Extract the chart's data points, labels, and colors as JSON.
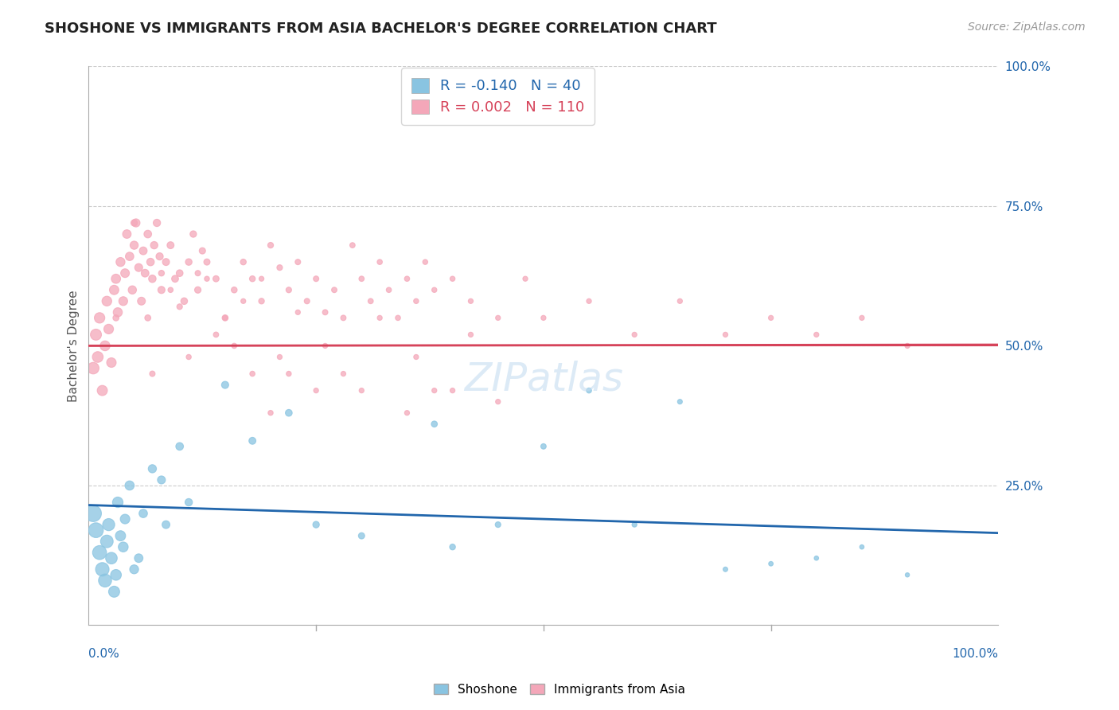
{
  "title": "SHOSHONE VS IMMIGRANTS FROM ASIA BACHELOR'S DEGREE CORRELATION CHART",
  "source": "Source: ZipAtlas.com",
  "ylabel": "Bachelor's Degree",
  "legend_label1": "Shoshone",
  "legend_label2": "Immigrants from Asia",
  "r1": "-0.140",
  "n1": "40",
  "r2": "0.002",
  "n2": "110",
  "watermark": "ZIPatlas",
  "blue_color": "#89c4e1",
  "pink_color": "#f4a7b9",
  "blue_line_color": "#2166ac",
  "pink_line_color": "#d6435a",
  "ref_line_color": "#d6435a",
  "blue_trend": [
    0,
    21.5,
    100,
    16.5
  ],
  "pink_trend": [
    0,
    50.0,
    100,
    50.2
  ],
  "shoshone_x": [
    0.5,
    0.8,
    1.2,
    1.5,
    1.8,
    2.0,
    2.2,
    2.5,
    2.8,
    3.0,
    3.2,
    3.5,
    3.8,
    4.0,
    4.5,
    5.0,
    5.5,
    6.0,
    7.0,
    8.0,
    8.5,
    10.0,
    11.0,
    15.0,
    18.0,
    22.0,
    25.0,
    30.0,
    38.0,
    40.0,
    45.0,
    50.0,
    55.0,
    60.0,
    65.0,
    70.0,
    75.0,
    80.0,
    85.0,
    90.0
  ],
  "shoshone_y": [
    20,
    17,
    13,
    10,
    8,
    15,
    18,
    12,
    6,
    9,
    22,
    16,
    14,
    19,
    25,
    10,
    12,
    20,
    28,
    26,
    18,
    32,
    22,
    43,
    33,
    38,
    18,
    16,
    36,
    14,
    18,
    32,
    42,
    18,
    40,
    10,
    11,
    12,
    14,
    9
  ],
  "shoshone_sizes": [
    220,
    180,
    160,
    150,
    140,
    130,
    120,
    110,
    100,
    95,
    90,
    85,
    80,
    75,
    70,
    65,
    60,
    58,
    55,
    52,
    50,
    48,
    45,
    42,
    40,
    38,
    35,
    32,
    30,
    28,
    26,
    24,
    22,
    20,
    19,
    18,
    17,
    16,
    16,
    15
  ],
  "asia_x": [
    0.5,
    0.8,
    1.0,
    1.2,
    1.5,
    1.8,
    2.0,
    2.2,
    2.5,
    2.8,
    3.0,
    3.2,
    3.5,
    3.8,
    4.0,
    4.2,
    4.5,
    4.8,
    5.0,
    5.2,
    5.5,
    5.8,
    6.0,
    6.2,
    6.5,
    6.8,
    7.0,
    7.2,
    7.5,
    7.8,
    8.0,
    8.5,
    9.0,
    9.5,
    10.0,
    10.5,
    11.0,
    11.5,
    12.0,
    12.5,
    13.0,
    14.0,
    15.0,
    16.0,
    17.0,
    18.0,
    19.0,
    20.0,
    21.0,
    22.0,
    23.0,
    24.0,
    25.0,
    26.0,
    27.0,
    28.0,
    29.0,
    30.0,
    31.0,
    32.0,
    33.0,
    34.0,
    35.0,
    36.0,
    37.0,
    38.0,
    40.0,
    42.0,
    45.0,
    48.0,
    50.0,
    55.0,
    60.0,
    65.0,
    70.0,
    75.0,
    80.0,
    85.0,
    90.0,
    5.0,
    6.5,
    8.0,
    10.0,
    12.0,
    14.0,
    16.0,
    18.0,
    20.0,
    22.0,
    25.0,
    28.0,
    30.0,
    35.0,
    38.0,
    42.0,
    45.0,
    3.0,
    7.0,
    9.0,
    11.0,
    13.0,
    15.0,
    17.0,
    19.0,
    21.0,
    23.0,
    26.0,
    32.0,
    36.0,
    40.0
  ],
  "asia_y": [
    46,
    52,
    48,
    55,
    42,
    50,
    58,
    53,
    47,
    60,
    62,
    56,
    65,
    58,
    63,
    70,
    66,
    60,
    68,
    72,
    64,
    58,
    67,
    63,
    70,
    65,
    62,
    68,
    72,
    66,
    60,
    65,
    68,
    62,
    63,
    58,
    65,
    70,
    60,
    67,
    65,
    62,
    55,
    60,
    65,
    62,
    58,
    68,
    64,
    60,
    65,
    58,
    62,
    56,
    60,
    55,
    68,
    62,
    58,
    65,
    60,
    55,
    62,
    58,
    65,
    60,
    62,
    58,
    55,
    62,
    55,
    58,
    52,
    58,
    52,
    55,
    52,
    55,
    50,
    72,
    55,
    63,
    57,
    63,
    52,
    50,
    45,
    38,
    45,
    42,
    45,
    42,
    38,
    42,
    52,
    40,
    55,
    45,
    60,
    48,
    62,
    55,
    58,
    62,
    48,
    56,
    50,
    55,
    48,
    42
  ],
  "asia_sizes": [
    110,
    100,
    95,
    90,
    85,
    80,
    78,
    76,
    74,
    72,
    70,
    68,
    66,
    64,
    62,
    60,
    58,
    56,
    55,
    54,
    52,
    51,
    50,
    49,
    48,
    47,
    46,
    45,
    44,
    43,
    42,
    41,
    40,
    39,
    38,
    37,
    36,
    35,
    34,
    33,
    32,
    31,
    30,
    29,
    28,
    28,
    27,
    27,
    26,
    26,
    25,
    25,
    25,
    24,
    24,
    24,
    23,
    23,
    23,
    22,
    22,
    22,
    22,
    21,
    21,
    21,
    21,
    20,
    20,
    20,
    20,
    20,
    20,
    20,
    20,
    20,
    20,
    20,
    20,
    35,
    30,
    28,
    26,
    25,
    23,
    22,
    22,
    21,
    21,
    20,
    20,
    20,
    20,
    20,
    20,
    20,
    30,
    25,
    22,
    21,
    21,
    20,
    20,
    20,
    20,
    20,
    20,
    20,
    20,
    20
  ]
}
